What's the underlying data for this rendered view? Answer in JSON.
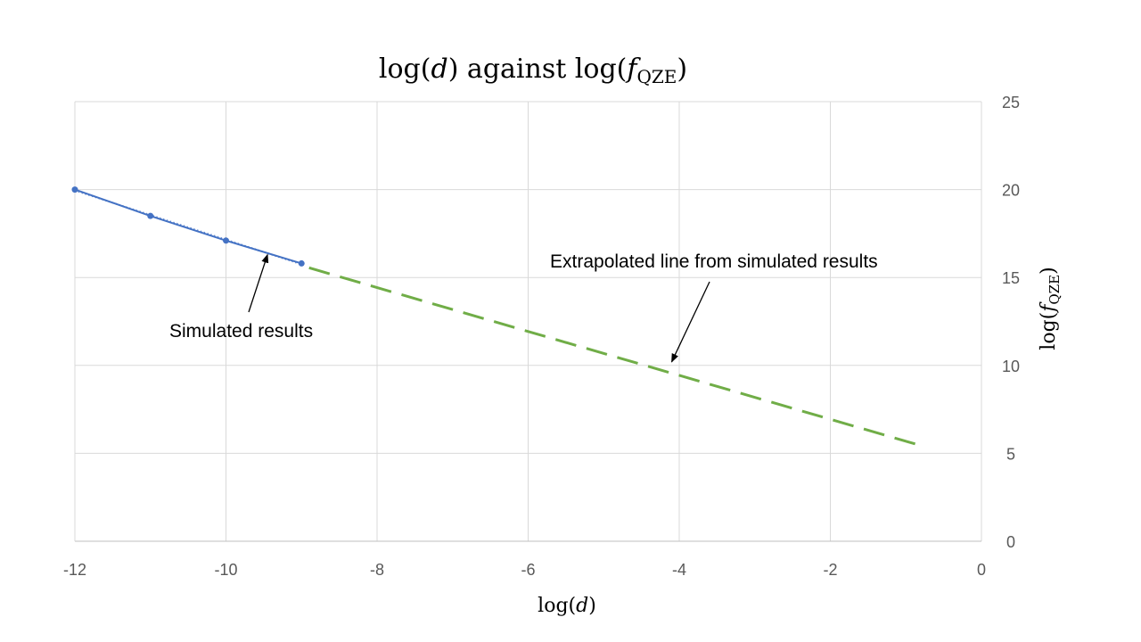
{
  "chart_data": {
    "type": "line",
    "title": {
      "prefix": "log(",
      "var": "d",
      "middle": ") against log(",
      "var2": "f",
      "sub": "QZE",
      "suffix": ")"
    },
    "xlabel": {
      "prefix": "log(",
      "var": "d",
      "suffix": ")"
    },
    "ylabel": {
      "prefix": "log(",
      "var": "f",
      "sub": "QZE",
      "suffix": ")"
    },
    "xlim": [
      -12,
      0
    ],
    "ylim": [
      0,
      25
    ],
    "x_ticks": [
      -12,
      -10,
      -8,
      -6,
      -4,
      -2,
      0
    ],
    "y_ticks": [
      0,
      5,
      10,
      15,
      20,
      25
    ],
    "y_axis_side": "right",
    "grid": true,
    "series": [
      {
        "x": [
          -12,
          -11,
          -10,
          -9
        ],
        "y": [
          20,
          18.5,
          17.1,
          15.8
        ],
        "style": "solid-markers",
        "color": "#4472c4"
      },
      {
        "x": [
          -8.9,
          -0.85
        ],
        "y": [
          15.55,
          5.5
        ],
        "style": "dashed",
        "color": "#70ad47"
      }
    ],
    "trendline": {
      "x": [
        -12,
        -9
      ],
      "y": [
        19.95,
        15.75
      ],
      "style": "dotted",
      "color": "#4472c4"
    },
    "annotations": [
      {
        "text": "Simulated results",
        "arrow_to": [
          -9.45,
          16.3
        ]
      },
      {
        "text": "Extrapolated line from simulated results",
        "arrow_to": [
          -4.1,
          10.2
        ]
      }
    ]
  }
}
